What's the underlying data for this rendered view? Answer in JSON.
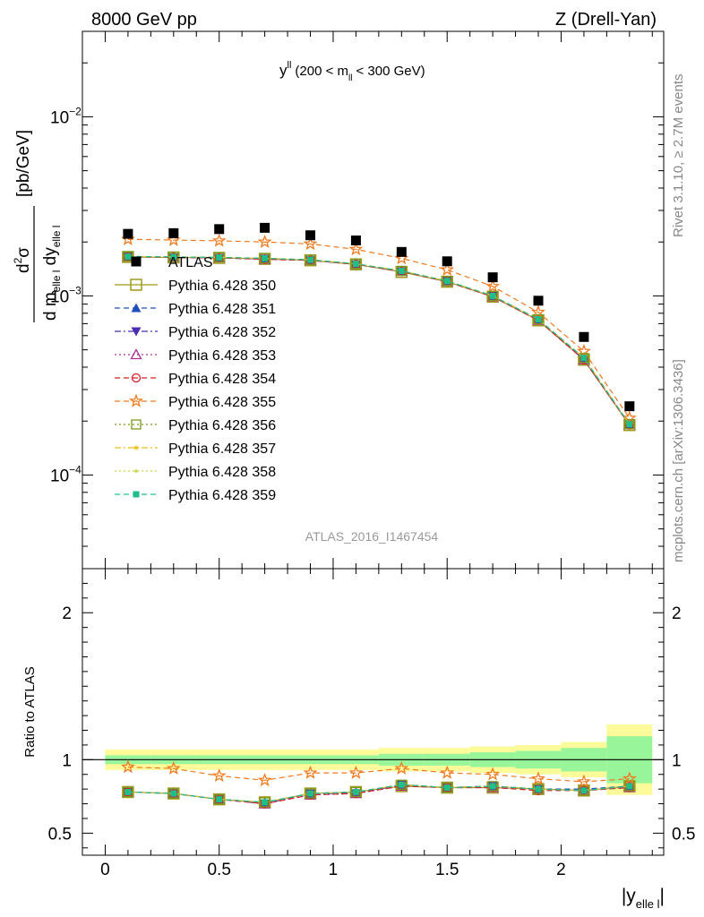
{
  "header": {
    "left_label": "8000 GeV pp",
    "right_label": "Z (Drell-Yan)"
  },
  "side_labels": {
    "rivet": "Rivet 3.1.10, ≥ 2.7M events",
    "mcplots": "mcplots.cern.ch [arXiv:1306.3436]"
  },
  "analysis_id": "ATLAS_2016_I1467454",
  "chart_data": [
    {
      "panel": "main",
      "type": "scatter",
      "title": "y^ll (200 < m_ll < 300 GeV)",
      "title_main": "y",
      "title_sup": "ll",
      "title_rest": "(200 < m",
      "title_sub": "ll",
      "title_end": "< 300 GeV)",
      "ylabel_unit": "[pb/GeV]",
      "ylabel_num_main": "d",
      "ylabel_num_sup": "2",
      "ylabel_num_end": "σ",
      "ylabel_den_a": "d m",
      "ylabel_den_sub_a": "elle l",
      "ylabel_den_b": " dy",
      "ylabel_den_sub_b": "elle l",
      "yscale": "log",
      "ylim": [
        3e-05,
        0.03
      ],
      "xlim": [
        -0.1,
        2.45
      ],
      "y_ticks": [
        {
          "value": 0.0001,
          "base": "10",
          "exp": "−4"
        },
        {
          "value": 0.001,
          "base": "10",
          "exp": "−3"
        },
        {
          "value": 0.01,
          "base": "10",
          "exp": "−2"
        }
      ],
      "x": [
        0.1,
        0.3,
        0.5,
        0.7,
        0.9,
        1.1,
        1.3,
        1.5,
        1.7,
        1.9,
        2.1,
        2.3
      ],
      "series": [
        {
          "name": "ATLAS",
          "color": "#000000",
          "marker": "filled-square",
          "line": "none",
          "values": [
            0.00222,
            0.00224,
            0.00236,
            0.0024,
            0.00218,
            0.00204,
            0.00176,
            0.00156,
            0.00127,
            0.00094,
            0.00059,
            0.000242
          ]
        },
        {
          "name": "Pythia 6.428 350",
          "color": "#a09a1c",
          "marker": "open-square-large",
          "line": "solid",
          "values": [
            0.00165,
            0.00164,
            0.00163,
            0.00161,
            0.00158,
            0.0015,
            0.00136,
            0.0012,
            0.00099,
            0.00073,
            0.00044,
            0.00019
          ]
        },
        {
          "name": "Pythia 6.428 351",
          "color": "#1f4fbf",
          "marker": "filled-triangle-up",
          "line": "dashed",
          "values": [
            0.00166,
            0.00165,
            0.00164,
            0.00162,
            0.00159,
            0.00151,
            0.00137,
            0.00121,
            0.001,
            0.00074,
            0.00045,
            0.000192
          ]
        },
        {
          "name": "Pythia 6.428 352",
          "color": "#4b2db3",
          "marker": "filled-triangle-down",
          "line": "dashdot",
          "values": [
            0.00166,
            0.00164,
            0.00163,
            0.00161,
            0.00158,
            0.0015,
            0.00137,
            0.00121,
            0.001,
            0.00074,
            0.00044,
            0.000191
          ]
        },
        {
          "name": "Pythia 6.428 353",
          "color": "#b0309a",
          "marker": "open-triangle-up",
          "line": "dotted",
          "values": [
            0.00165,
            0.00164,
            0.00163,
            0.0016,
            0.00158,
            0.0015,
            0.00137,
            0.0012,
            0.00099,
            0.00073,
            0.00044,
            0.000191
          ]
        },
        {
          "name": "Pythia 6.428 354",
          "color": "#d42027",
          "marker": "open-circle",
          "line": "dashed",
          "values": [
            0.00165,
            0.00164,
            0.00163,
            0.0016,
            0.00158,
            0.0015,
            0.00137,
            0.0012,
            0.00099,
            0.00073,
            0.00044,
            0.00019
          ]
        },
        {
          "name": "Pythia 6.428 355",
          "color": "#f07a1e",
          "marker": "open-star",
          "line": "dashed",
          "values": [
            0.00207,
            0.00205,
            0.00203,
            0.002,
            0.00195,
            0.00182,
            0.00162,
            0.0014,
            0.00113,
            0.00081,
            0.00049,
            0.000208
          ]
        },
        {
          "name": "Pythia 6.428 356",
          "color": "#7a9a1a",
          "marker": "open-square",
          "line": "dotted",
          "values": [
            0.00166,
            0.00165,
            0.00164,
            0.00162,
            0.00159,
            0.00151,
            0.00138,
            0.00121,
            0.001,
            0.00074,
            0.00045,
            0.000192
          ]
        },
        {
          "name": "Pythia 6.428 357",
          "color": "#e8c218",
          "marker": "small-star",
          "line": "dashdot",
          "values": [
            0.00166,
            0.00165,
            0.00164,
            0.00162,
            0.00159,
            0.00151,
            0.00138,
            0.00121,
            0.001,
            0.00074,
            0.00045,
            0.000192
          ]
        },
        {
          "name": "Pythia 6.428 358",
          "color": "#c8d640",
          "marker": "small-dot",
          "line": "dotted",
          "values": [
            0.00166,
            0.00165,
            0.00164,
            0.00162,
            0.00159,
            0.00151,
            0.00138,
            0.00121,
            0.001,
            0.00074,
            0.00045,
            0.000192
          ]
        },
        {
          "name": "Pythia 6.428 359",
          "color": "#1fbf8a",
          "marker": "filled-square-small",
          "line": "dashed",
          "values": [
            0.00166,
            0.00165,
            0.00164,
            0.00162,
            0.00159,
            0.00151,
            0.00138,
            0.00121,
            0.001,
            0.00074,
            0.00045,
            0.000192
          ]
        }
      ]
    },
    {
      "panel": "ratio",
      "type": "line",
      "ylabel": "Ratio to ATLAS",
      "ylim": [
        0.35,
        2.3
      ],
      "xlim": [
        -0.1,
        2.45
      ],
      "y_ticks": [
        {
          "value": 0.5,
          "label": "0.5"
        },
        {
          "value": 1,
          "label": "1"
        },
        {
          "value": 2,
          "label": "2"
        }
      ],
      "x_ticks": [
        {
          "value": 0,
          "label": "0"
        },
        {
          "value": 0.5,
          "label": "0.5"
        },
        {
          "value": 1,
          "label": "1"
        },
        {
          "value": 1.5,
          "label": "1.5"
        },
        {
          "value": 2,
          "label": "2"
        }
      ],
      "xlabel_main": "|y",
      "xlabel_sub": "elle l",
      "xlabel_end": "|",
      "bins": [
        [
          0.0,
          0.2
        ],
        [
          0.2,
          0.4
        ],
        [
          0.4,
          0.6
        ],
        [
          0.6,
          0.8
        ],
        [
          0.8,
          1.0
        ],
        [
          1.0,
          1.2
        ],
        [
          1.2,
          1.4
        ],
        [
          1.4,
          1.6
        ],
        [
          1.6,
          1.8
        ],
        [
          1.8,
          2.0
        ],
        [
          2.0,
          2.2
        ],
        [
          2.2,
          2.4
        ]
      ],
      "band_yellow": [
        [
          0.93,
          1.07
        ],
        [
          0.93,
          1.07
        ],
        [
          0.93,
          1.07
        ],
        [
          0.93,
          1.07
        ],
        [
          0.93,
          1.07
        ],
        [
          0.93,
          1.07
        ],
        [
          0.92,
          1.08
        ],
        [
          0.92,
          1.08
        ],
        [
          0.91,
          1.09
        ],
        [
          0.9,
          1.1
        ],
        [
          0.88,
          1.12
        ],
        [
          0.76,
          1.24
        ]
      ],
      "band_green": [
        [
          0.97,
          1.03
        ],
        [
          0.97,
          1.03
        ],
        [
          0.97,
          1.03
        ],
        [
          0.97,
          1.03
        ],
        [
          0.97,
          1.03
        ],
        [
          0.97,
          1.03
        ],
        [
          0.96,
          1.04
        ],
        [
          0.96,
          1.04
        ],
        [
          0.95,
          1.05
        ],
        [
          0.94,
          1.06
        ],
        [
          0.92,
          1.08
        ],
        [
          0.84,
          1.16
        ]
      ],
      "x": [
        0.1,
        0.3,
        0.5,
        0.7,
        0.9,
        1.1,
        1.3,
        1.5,
        1.7,
        1.9,
        2.1,
        2.3
      ],
      "series": [
        {
          "name": "Pythia 6.428 350",
          "values": [
            0.78,
            0.77,
            0.73,
            0.71,
            0.77,
            0.78,
            0.82,
            0.81,
            0.81,
            0.8,
            0.79,
            0.82
          ]
        },
        {
          "name": "Pythia 6.428 351",
          "values": [
            0.78,
            0.77,
            0.73,
            0.71,
            0.77,
            0.78,
            0.83,
            0.81,
            0.82,
            0.8,
            0.8,
            0.82
          ]
        },
        {
          "name": "Pythia 6.428 352",
          "values": [
            0.78,
            0.77,
            0.73,
            0.7,
            0.77,
            0.77,
            0.83,
            0.81,
            0.82,
            0.8,
            0.79,
            0.82
          ]
        },
        {
          "name": "Pythia 6.428 353",
          "values": [
            0.78,
            0.77,
            0.73,
            0.7,
            0.76,
            0.77,
            0.82,
            0.81,
            0.81,
            0.8,
            0.79,
            0.81
          ]
        },
        {
          "name": "Pythia 6.428 354",
          "values": [
            0.78,
            0.77,
            0.73,
            0.7,
            0.76,
            0.77,
            0.82,
            0.81,
            0.81,
            0.79,
            0.79,
            0.81
          ]
        },
        {
          "name": "Pythia 6.428 355",
          "values": [
            0.95,
            0.94,
            0.89,
            0.86,
            0.91,
            0.91,
            0.94,
            0.91,
            0.9,
            0.87,
            0.85,
            0.87
          ]
        },
        {
          "name": "Pythia 6.428 356",
          "values": [
            0.78,
            0.77,
            0.73,
            0.71,
            0.77,
            0.78,
            0.83,
            0.81,
            0.82,
            0.8,
            0.79,
            0.82
          ]
        },
        {
          "name": "Pythia 6.428 357",
          "values": [
            0.78,
            0.77,
            0.73,
            0.71,
            0.77,
            0.78,
            0.83,
            0.81,
            0.82,
            0.8,
            0.79,
            0.82
          ]
        },
        {
          "name": "Pythia 6.428 358",
          "values": [
            0.78,
            0.77,
            0.73,
            0.71,
            0.77,
            0.78,
            0.83,
            0.81,
            0.82,
            0.8,
            0.79,
            0.82
          ]
        },
        {
          "name": "Pythia 6.428 359",
          "values": [
            0.78,
            0.77,
            0.73,
            0.71,
            0.77,
            0.78,
            0.83,
            0.81,
            0.82,
            0.8,
            0.79,
            0.82
          ]
        }
      ]
    }
  ]
}
